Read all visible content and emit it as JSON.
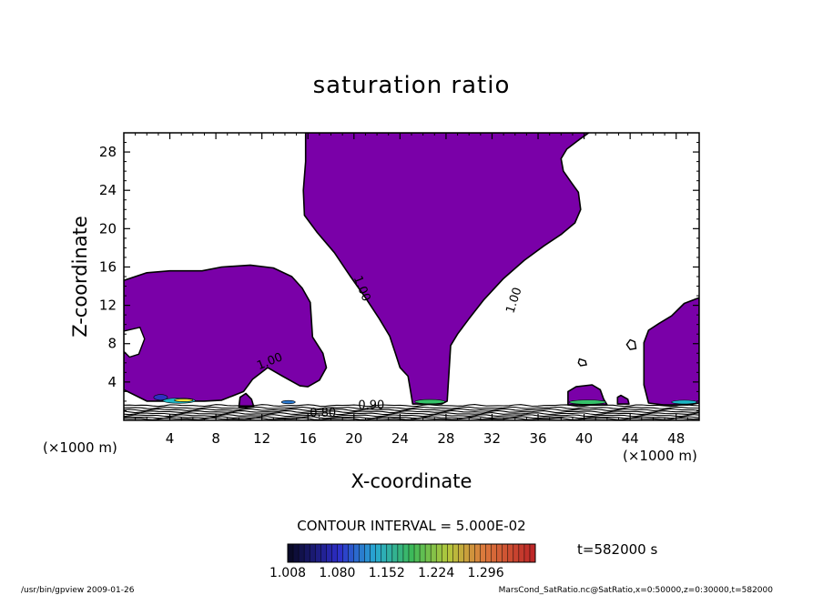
{
  "chart_data": {
    "type": "contour",
    "title": "saturation ratio",
    "xlabel": "X-coordinate",
    "ylabel": "Z-coordinate",
    "x_unit": "(×1000 m)",
    "y_unit": "(×1000 m)",
    "xlim": [
      0,
      50
    ],
    "ylim": [
      0,
      30
    ],
    "x_ticks": [
      4,
      8,
      12,
      16,
      20,
      24,
      28,
      32,
      36,
      40,
      44,
      48
    ],
    "y_ticks": [
      4,
      8,
      12,
      16,
      20,
      24,
      28
    ],
    "fill_color": "#7a00a8",
    "line_color": "#000000",
    "contour_labels": [
      {
        "text": "1.00",
        "x": 20.4,
        "y": 13.6,
        "rot": 68
      },
      {
        "text": "1.00",
        "x": 34.2,
        "y": 12.4,
        "rot": -72
      },
      {
        "text": "1.00",
        "x": 12.8,
        "y": 5.8,
        "rot": -22
      },
      {
        "text": "0.90",
        "x": 21.5,
        "y": 1.2,
        "rot": 0
      },
      {
        "text": "0.80",
        "x": 17.3,
        "y": 0.4,
        "rot": 0
      }
    ],
    "regions": [
      {
        "name": "central-plume",
        "points": [
          [
            15.8,
            30
          ],
          [
            40.4,
            30
          ],
          [
            39.7,
            29.4
          ],
          [
            38.5,
            28.3
          ],
          [
            38,
            27.3
          ],
          [
            38.2,
            26
          ],
          [
            38.9,
            24.8
          ],
          [
            39.5,
            23.8
          ],
          [
            39.7,
            22
          ],
          [
            39.2,
            20.6
          ],
          [
            38,
            19.4
          ],
          [
            36.5,
            18.2
          ],
          [
            34.8,
            16.7
          ],
          [
            33,
            14.8
          ],
          [
            31.3,
            12.6
          ],
          [
            30,
            10.6
          ],
          [
            29,
            9
          ],
          [
            28.4,
            7.8
          ],
          [
            28.3,
            5.8
          ],
          [
            28.1,
            2
          ],
          [
            27.6,
            1.7
          ],
          [
            25.1,
            1.7
          ],
          [
            24.9,
            3.2
          ],
          [
            24.7,
            4.6
          ],
          [
            24,
            5.5
          ],
          [
            23.6,
            7
          ],
          [
            23.1,
            8.8
          ],
          [
            22.2,
            10.6
          ],
          [
            21,
            12.8
          ],
          [
            19.7,
            15
          ],
          [
            18.3,
            17.5
          ],
          [
            16.8,
            19.6
          ],
          [
            15.7,
            21.4
          ],
          [
            15.6,
            24
          ],
          [
            15.8,
            27
          ],
          [
            15.8,
            30
          ]
        ]
      },
      {
        "name": "left-blob",
        "points": [
          [
            0,
            14.6
          ],
          [
            2,
            15.4
          ],
          [
            4,
            15.6
          ],
          [
            6.8,
            15.6
          ],
          [
            8.5,
            16
          ],
          [
            11,
            16.2
          ],
          [
            13,
            15.9
          ],
          [
            14.6,
            15
          ],
          [
            15.5,
            13.8
          ],
          [
            16.2,
            12.3
          ],
          [
            16.3,
            10.6
          ],
          [
            16.4,
            8.7
          ],
          [
            17.3,
            7
          ],
          [
            17.6,
            5.5
          ],
          [
            17,
            4.2
          ],
          [
            16,
            3.5
          ],
          [
            15.3,
            3.6
          ],
          [
            13.8,
            4.6
          ],
          [
            12.5,
            5.5
          ],
          [
            11.2,
            4.3
          ],
          [
            10.4,
            3
          ],
          [
            8.5,
            2.1
          ],
          [
            7,
            2
          ],
          [
            4,
            2
          ],
          [
            2,
            2
          ],
          [
            0,
            3.2
          ],
          [
            0,
            14.6
          ]
        ]
      },
      {
        "name": "right-blob",
        "points": [
          [
            50,
            12.8
          ],
          [
            48.7,
            12.2
          ],
          [
            47.6,
            10.9
          ],
          [
            46.5,
            10.1
          ],
          [
            45.6,
            9.4
          ],
          [
            45.2,
            8.1
          ],
          [
            45.2,
            5.8
          ],
          [
            45.2,
            3.7
          ],
          [
            45.6,
            1.8
          ],
          [
            46.9,
            1.6
          ],
          [
            49,
            1.6
          ],
          [
            50,
            1.8
          ],
          [
            50,
            12.8
          ]
        ]
      },
      {
        "name": "islet-38",
        "points": [
          [
            38.6,
            1.6
          ],
          [
            38.6,
            3
          ],
          [
            39.3,
            3.5
          ],
          [
            40.7,
            3.7
          ],
          [
            41.4,
            3.2
          ],
          [
            41.7,
            2.2
          ],
          [
            42,
            1.6
          ],
          [
            38.6,
            1.6
          ]
        ]
      },
      {
        "name": "islet-43",
        "points": [
          [
            42.9,
            1.7
          ],
          [
            42.9,
            2.4
          ],
          [
            43.2,
            2.6
          ],
          [
            43.8,
            2.2
          ],
          [
            43.9,
            1.7
          ],
          [
            42.9,
            1.7
          ]
        ]
      },
      {
        "name": "islet-10",
        "points": [
          [
            10,
            1.4
          ],
          [
            10.1,
            2.4
          ],
          [
            10.6,
            2.8
          ],
          [
            11.1,
            2.2
          ],
          [
            11.3,
            1.4
          ],
          [
            10,
            1.4
          ]
        ]
      }
    ],
    "holes": [
      {
        "name": "hole-left",
        "points": [
          [
            0,
            9.3
          ],
          [
            1.4,
            9.7
          ],
          [
            1.8,
            8.5
          ],
          [
            1.3,
            6.9
          ],
          [
            0.5,
            6.6
          ],
          [
            0,
            7.2
          ],
          [
            0,
            9.3
          ]
        ]
      },
      {
        "name": "hole-right-1",
        "points": [
          [
            44,
            8.4
          ],
          [
            44.4,
            8.2
          ],
          [
            44.5,
            7.5
          ],
          [
            44,
            7.4
          ],
          [
            43.7,
            7.9
          ],
          [
            44,
            8.4
          ]
        ]
      },
      {
        "name": "hole-right-2",
        "points": [
          [
            39.6,
            6.4
          ],
          [
            40.1,
            6.2
          ],
          [
            40.2,
            5.8
          ],
          [
            39.7,
            5.7
          ],
          [
            39.5,
            6
          ],
          [
            39.6,
            6.4
          ]
        ]
      }
    ],
    "hot_spots": [
      {
        "x": 4.8,
        "y": 2.05,
        "w": 2.8,
        "h": 0.55,
        "color": "#1db8c7"
      },
      {
        "x": 5.2,
        "y": 2.1,
        "w": 1.6,
        "h": 0.3,
        "color": "#f2e33a"
      },
      {
        "x": 26.6,
        "y": 1.95,
        "w": 2.6,
        "h": 0.45,
        "color": "#36c26a"
      },
      {
        "x": 40.3,
        "y": 1.9,
        "w": 3.2,
        "h": 0.45,
        "color": "#36c26a"
      },
      {
        "x": 48.7,
        "y": 1.9,
        "w": 2.2,
        "h": 0.4,
        "color": "#1db8c7"
      },
      {
        "x": 14.3,
        "y": 1.9,
        "w": 1.2,
        "h": 0.35,
        "color": "#2a7ad2"
      },
      {
        "x": 3.2,
        "y": 2.4,
        "w": 1.2,
        "h": 0.6,
        "color": "#3030c0"
      }
    ],
    "contour_interval_text": "CONTOUR INTERVAL = 5.000E-02",
    "colorbar": {
      "min": 1.008,
      "max": 1.368,
      "step": 0.008,
      "tick_labels": [
        "1.008",
        "1.080",
        "1.152",
        "1.224",
        "1.296"
      ]
    },
    "time_label": "t=582000 s",
    "footer_left": "/usr/bin/gpview   2009-01-26",
    "footer_right": "MarsCond_SatRatio.nc@SatRatio,x=0:50000,z=0:30000,t=582000"
  }
}
